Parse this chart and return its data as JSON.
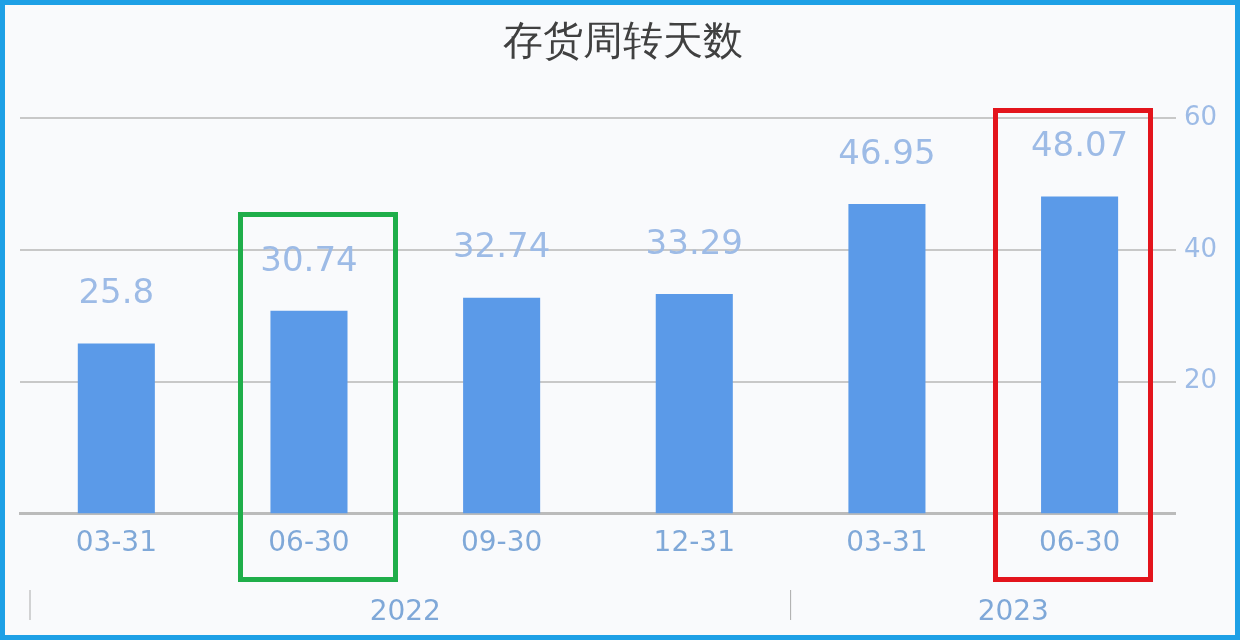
{
  "chart_data": {
    "type": "bar",
    "title": "存货周转天数",
    "categories": [
      "03-31",
      "06-30",
      "09-30",
      "12-31",
      "03-31",
      "06-30"
    ],
    "values": [
      25.8,
      30.74,
      32.74,
      33.29,
      46.95,
      48.07
    ],
    "color": "#5b9ae8",
    "ylim": [
      0,
      60
    ],
    "yticks": [
      20,
      40,
      60
    ],
    "grid": "y",
    "data_labels": true,
    "annotations": [
      "2022",
      "2023"
    ]
  }
}
